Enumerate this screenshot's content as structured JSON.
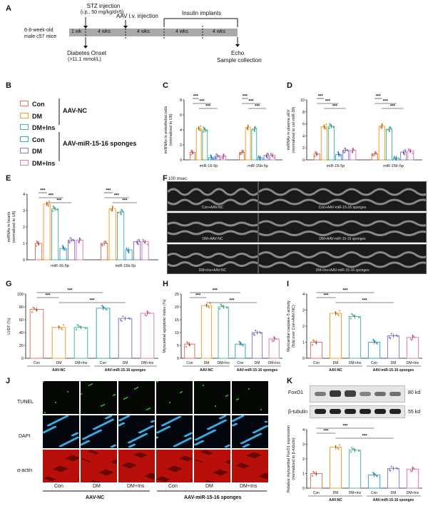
{
  "panelA": {
    "letter": "A",
    "stz": "STZ injection",
    "stz_dose": "(i.p., 50 mg/kg/d×5)",
    "aav": "AAV i.v. injection",
    "insulin": "Insulin implants",
    "mice1": "6-8-week-old",
    "mice2": "male c57 mice",
    "segments": [
      "1 wk",
      "4 wks",
      "4 wks",
      "4 wks",
      "4 wks"
    ],
    "onset1": "Diabetes Onset",
    "onset2": "(>11.1 mmol/L)",
    "echo1": "Echo",
    "echo2": "Sample collection"
  },
  "panelB": {
    "letter": "B",
    "groups": [
      {
        "label": "Con",
        "color": "#e8735a"
      },
      {
        "label": "DM",
        "color": "#f0a030"
      },
      {
        "label": "DM+Ins",
        "color": "#4db89a"
      },
      {
        "label": "Con",
        "color": "#3aa0d8"
      },
      {
        "label": "DM",
        "color": "#8a78c8"
      },
      {
        "label": "DM+Ins",
        "color": "#e07ab8"
      }
    ],
    "bracket1": "AAV-NC",
    "bracket2": "AAV-miR-15-16 sponges"
  },
  "panelC": {
    "letter": "C",
    "ylabel1": "miRNAs in endothelial cells",
    "ylabel2": "(normalized to U6)",
    "xcats": [
      "miR-16-5p",
      "miR-15b-5p"
    ]
  },
  "panelD": {
    "letter": "D",
    "ylabel1": "miRNAs in plasma sEV",
    "ylabel2": "(normalized to cel-miR-39)",
    "xcats": [
      "miR-16-5p",
      "miR-15b-5p"
    ]
  },
  "panelE": {
    "letter": "E",
    "ylabel1": "miRNAs in hearts",
    "ylabel2": "(normalized to U6)",
    "xcats": [
      "miR-16-5p",
      "miR-15b-5p"
    ]
  },
  "panelF": {
    "letter": "F",
    "scale": "100 msec",
    "captions": [
      "Con+AAV-NC",
      "Con+AAV-miR-15-16 sponges",
      "DM+AAV-NC",
      "DM+AAV-miR-15-16 sponges",
      "DM+Ins+AAV-NC",
      "DM+Ins+AAV-miR-15-16 sponges"
    ]
  },
  "panelG": {
    "letter": "G",
    "ylabel": "LVEF (%)"
  },
  "panelH": {
    "letter": "H",
    "ylabel": "Myocardial apoptotic index (%)"
  },
  "panelI": {
    "letter": "I",
    "ylabel1": "Myocardial caspase-3 activity",
    "ylabel2": "(fold over Con+AAV-NC)"
  },
  "panelJ": {
    "letter": "J",
    "rows": [
      "TUNEL",
      "DAPI",
      "α-actin"
    ]
  },
  "panelK": {
    "letter": "K",
    "blot1": "FoxO1",
    "blot1_kd": "80 kd",
    "blot2": "β-tubulin",
    "blot2_kd": "55 kd",
    "ylabel1": "Relative myocardial FoxO1 expression",
    "ylabel2": "(normalized to β-tubulin)"
  },
  "group_labels": [
    "Con",
    "DM",
    "DM+Ins",
    "Con",
    "DM",
    "DM+Ins"
  ],
  "bracket_labels": [
    "AAV-NC",
    "AAV-miR-15-16 sponges"
  ],
  "sig": "***",
  "chart_data": [
    {
      "id": "C",
      "type": "bar",
      "categories": [
        "miR-16-5p",
        "miR-15b-5p"
      ],
      "ylim": [
        0,
        8
      ],
      "yticks": [
        0,
        2,
        4,
        6,
        8
      ],
      "series": [
        {
          "name": "Con",
          "values": [
            1.0,
            1.0
          ]
        },
        {
          "name": "DM",
          "values": [
            4.2,
            4.3
          ]
        },
        {
          "name": "DM+Ins",
          "values": [
            4.0,
            4.1
          ]
        },
        {
          "name": "Con",
          "values": [
            0.3,
            0.3
          ]
        },
        {
          "name": "DM",
          "values": [
            0.5,
            0.6
          ]
        },
        {
          "name": "DM+Ins",
          "values": [
            0.5,
            0.6
          ]
        }
      ]
    },
    {
      "id": "D",
      "type": "bar",
      "categories": [
        "miR-16-5p",
        "miR-15b-5p"
      ],
      "ylim": [
        0,
        10
      ],
      "yticks": [
        0,
        2,
        4,
        6,
        8,
        10
      ],
      "series": [
        {
          "name": "Con",
          "values": [
            1.0,
            1.0
          ]
        },
        {
          "name": "DM",
          "values": [
            5.5,
            5.6
          ]
        },
        {
          "name": "DM+Ins",
          "values": [
            5.6,
            5.1
          ]
        },
        {
          "name": "Con",
          "values": [
            0.9,
            0.3
          ]
        },
        {
          "name": "DM",
          "values": [
            1.6,
            1.3
          ]
        },
        {
          "name": "DM+Ins",
          "values": [
            1.6,
            1.5
          ]
        }
      ]
    },
    {
      "id": "E",
      "type": "bar",
      "categories": [
        "miR-16-5p",
        "miR-15b-5p"
      ],
      "ylim": [
        0,
        4
      ],
      "yticks": [
        0,
        1,
        2,
        3,
        4
      ],
      "series": [
        {
          "name": "Con",
          "values": [
            1.0,
            1.0
          ]
        },
        {
          "name": "DM",
          "values": [
            3.4,
            3.1
          ]
        },
        {
          "name": "DM+Ins",
          "values": [
            3.1,
            2.9
          ]
        },
        {
          "name": "Con",
          "values": [
            0.7,
            0.6
          ]
        },
        {
          "name": "DM",
          "values": [
            1.2,
            1.1
          ]
        },
        {
          "name": "DM+Ins",
          "values": [
            1.2,
            1.1
          ]
        }
      ]
    },
    {
      "id": "G",
      "type": "bar",
      "ylim": [
        0,
        100
      ],
      "yticks": [
        0,
        20,
        40,
        60,
        80,
        100
      ],
      "values": [
        76,
        48,
        48,
        78,
        62,
        70
      ]
    },
    {
      "id": "H",
      "type": "bar",
      "ylim": [
        0,
        25
      ],
      "yticks": [
        0,
        5,
        10,
        15,
        20,
        25
      ],
      "values": [
        5.5,
        20.5,
        20.0,
        5.5,
        10.0,
        7.5
      ]
    },
    {
      "id": "I",
      "type": "bar",
      "ylim": [
        0,
        4
      ],
      "yticks": [
        0,
        1,
        2,
        3,
        4
      ],
      "values": [
        1.0,
        2.8,
        2.6,
        1.0,
        1.4,
        1.3
      ]
    },
    {
      "id": "K",
      "type": "bar",
      "ylim": [
        0,
        4
      ],
      "yticks": [
        0,
        1,
        2,
        3,
        4
      ],
      "values": [
        1.0,
        2.8,
        2.6,
        0.9,
        1.35,
        1.3
      ]
    }
  ]
}
